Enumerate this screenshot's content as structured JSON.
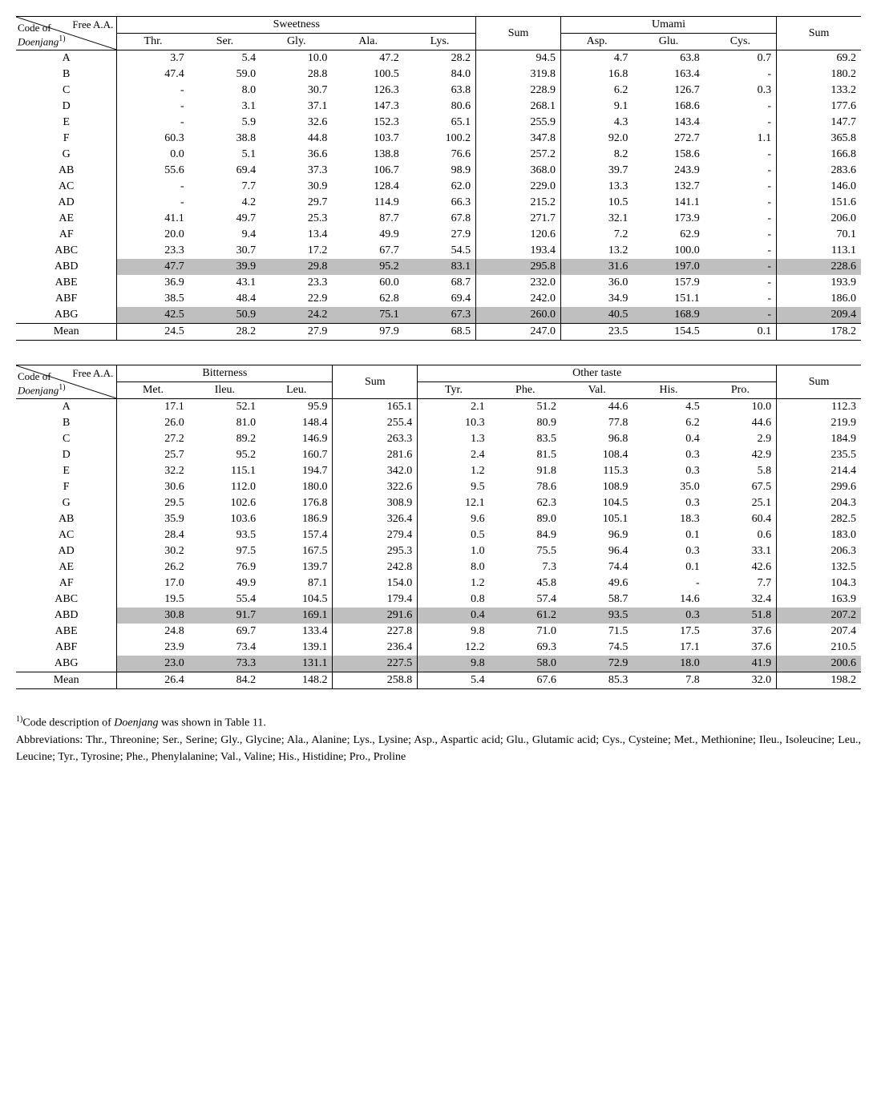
{
  "labels": {
    "freeAA": "Free A.A.",
    "codeOf": "Code of",
    "doenjang": "Doenjang",
    "sup1": "1)",
    "sum": "Sum",
    "mean": "Mean"
  },
  "table1": {
    "group1": "Sweetness",
    "group2": "Umami",
    "cols1": [
      "Thr.",
      "Ser.",
      "Gly.",
      "Ala.",
      "Lys."
    ],
    "cols2": [
      "Asp.",
      "Glu.",
      "Cys."
    ],
    "rows": [
      {
        "code": "A",
        "v": [
          "3.7",
          "5.4",
          "10.0",
          "47.2",
          "28.2",
          "94.5",
          "4.7",
          "63.8",
          "0.7",
          "69.2"
        ]
      },
      {
        "code": "B",
        "v": [
          "47.4",
          "59.0",
          "28.8",
          "100.5",
          "84.0",
          "319.8",
          "16.8",
          "163.4",
          "-",
          "180.2"
        ]
      },
      {
        "code": "C",
        "v": [
          "-",
          "8.0",
          "30.7",
          "126.3",
          "63.8",
          "228.9",
          "6.2",
          "126.7",
          "0.3",
          "133.2"
        ]
      },
      {
        "code": "D",
        "v": [
          "-",
          "3.1",
          "37.1",
          "147.3",
          "80.6",
          "268.1",
          "9.1",
          "168.6",
          "-",
          "177.6"
        ]
      },
      {
        "code": "E",
        "v": [
          "-",
          "5.9",
          "32.6",
          "152.3",
          "65.1",
          "255.9",
          "4.3",
          "143.4",
          "-",
          "147.7"
        ]
      },
      {
        "code": "F",
        "v": [
          "60.3",
          "38.8",
          "44.8",
          "103.7",
          "100.2",
          "347.8",
          "92.0",
          "272.7",
          "1.1",
          "365.8"
        ]
      },
      {
        "code": "G",
        "v": [
          "0.0",
          "5.1",
          "36.6",
          "138.8",
          "76.6",
          "257.2",
          "8.2",
          "158.6",
          "-",
          "166.8"
        ]
      },
      {
        "code": "AB",
        "v": [
          "55.6",
          "69.4",
          "37.3",
          "106.7",
          "98.9",
          "368.0",
          "39.7",
          "243.9",
          "-",
          "283.6"
        ]
      },
      {
        "code": "AC",
        "v": [
          "-",
          "7.7",
          "30.9",
          "128.4",
          "62.0",
          "229.0",
          "13.3",
          "132.7",
          "-",
          "146.0"
        ]
      },
      {
        "code": "AD",
        "v": [
          "-",
          "4.2",
          "29.7",
          "114.9",
          "66.3",
          "215.2",
          "10.5",
          "141.1",
          "-",
          "151.6"
        ]
      },
      {
        "code": "AE",
        "v": [
          "41.1",
          "49.7",
          "25.3",
          "87.7",
          "67.8",
          "271.7",
          "32.1",
          "173.9",
          "-",
          "206.0"
        ]
      },
      {
        "code": "AF",
        "v": [
          "20.0",
          "9.4",
          "13.4",
          "49.9",
          "27.9",
          "120.6",
          "7.2",
          "62.9",
          "-",
          "70.1"
        ]
      },
      {
        "code": "ABC",
        "v": [
          "23.3",
          "30.7",
          "17.2",
          "67.7",
          "54.5",
          "193.4",
          "13.2",
          "100.0",
          "-",
          "113.1"
        ]
      },
      {
        "code": "ABD",
        "v": [
          "47.7",
          "39.9",
          "29.8",
          "95.2",
          "83.1",
          "295.8",
          "31.6",
          "197.0",
          "-",
          "228.6"
        ],
        "hl": true
      },
      {
        "code": "ABE",
        "v": [
          "36.9",
          "43.1",
          "23.3",
          "60.0",
          "68.7",
          "232.0",
          "36.0",
          "157.9",
          "-",
          "193.9"
        ]
      },
      {
        "code": "ABF",
        "v": [
          "38.5",
          "48.4",
          "22.9",
          "62.8",
          "69.4",
          "242.0",
          "34.9",
          "151.1",
          "-",
          "186.0"
        ]
      },
      {
        "code": "ABG",
        "v": [
          "42.5",
          "50.9",
          "24.2",
          "75.1",
          "67.3",
          "260.0",
          "40.5",
          "168.9",
          "-",
          "209.4"
        ],
        "hl": true
      }
    ],
    "mean": [
      "24.5",
      "28.2",
      "27.9",
      "97.9",
      "68.5",
      "247.0",
      "23.5",
      "154.5",
      "0.1",
      "178.2"
    ]
  },
  "table2": {
    "group1": "Bitterness",
    "group2": "Other taste",
    "cols1": [
      "Met.",
      "Ileu.",
      "Leu."
    ],
    "cols2": [
      "Tyr.",
      "Phe.",
      "Val.",
      "His.",
      "Pro."
    ],
    "rows": [
      {
        "code": "A",
        "v": [
          "17.1",
          "52.1",
          "95.9",
          "165.1",
          "2.1",
          "51.2",
          "44.6",
          "4.5",
          "10.0",
          "112.3"
        ]
      },
      {
        "code": "B",
        "v": [
          "26.0",
          "81.0",
          "148.4",
          "255.4",
          "10.3",
          "80.9",
          "77.8",
          "6.2",
          "44.6",
          "219.9"
        ]
      },
      {
        "code": "C",
        "v": [
          "27.2",
          "89.2",
          "146.9",
          "263.3",
          "1.3",
          "83.5",
          "96.8",
          "0.4",
          "2.9",
          "184.9"
        ]
      },
      {
        "code": "D",
        "v": [
          "25.7",
          "95.2",
          "160.7",
          "281.6",
          "2.4",
          "81.5",
          "108.4",
          "0.3",
          "42.9",
          "235.5"
        ]
      },
      {
        "code": "E",
        "v": [
          "32.2",
          "115.1",
          "194.7",
          "342.0",
          "1.2",
          "91.8",
          "115.3",
          "0.3",
          "5.8",
          "214.4"
        ]
      },
      {
        "code": "F",
        "v": [
          "30.6",
          "112.0",
          "180.0",
          "322.6",
          "9.5",
          "78.6",
          "108.9",
          "35.0",
          "67.5",
          "299.6"
        ]
      },
      {
        "code": "G",
        "v": [
          "29.5",
          "102.6",
          "176.8",
          "308.9",
          "12.1",
          "62.3",
          "104.5",
          "0.3",
          "25.1",
          "204.3"
        ]
      },
      {
        "code": "AB",
        "v": [
          "35.9",
          "103.6",
          "186.9",
          "326.4",
          "9.6",
          "89.0",
          "105.1",
          "18.3",
          "60.4",
          "282.5"
        ]
      },
      {
        "code": "AC",
        "v": [
          "28.4",
          "93.5",
          "157.4",
          "279.4",
          "0.5",
          "84.9",
          "96.9",
          "0.1",
          "0.6",
          "183.0"
        ]
      },
      {
        "code": "AD",
        "v": [
          "30.2",
          "97.5",
          "167.5",
          "295.3",
          "1.0",
          "75.5",
          "96.4",
          "0.3",
          "33.1",
          "206.3"
        ]
      },
      {
        "code": "AE",
        "v": [
          "26.2",
          "76.9",
          "139.7",
          "242.8",
          "8.0",
          "7.3",
          "74.4",
          "0.1",
          "42.6",
          "132.5"
        ]
      },
      {
        "code": "AF",
        "v": [
          "17.0",
          "49.9",
          "87.1",
          "154.0",
          "1.2",
          "45.8",
          "49.6",
          "-",
          "7.7",
          "104.3"
        ]
      },
      {
        "code": "ABC",
        "v": [
          "19.5",
          "55.4",
          "104.5",
          "179.4",
          "0.8",
          "57.4",
          "58.7",
          "14.6",
          "32.4",
          "163.9"
        ]
      },
      {
        "code": "ABD",
        "v": [
          "30.8",
          "91.7",
          "169.1",
          "291.6",
          "0.4",
          "61.2",
          "93.5",
          "0.3",
          "51.8",
          "207.2"
        ],
        "hl": true
      },
      {
        "code": "ABE",
        "v": [
          "24.8",
          "69.7",
          "133.4",
          "227.8",
          "9.8",
          "71.0",
          "71.5",
          "17.5",
          "37.6",
          "207.4"
        ]
      },
      {
        "code": "ABF",
        "v": [
          "23.9",
          "73.4",
          "139.1",
          "236.4",
          "12.2",
          "69.3",
          "74.5",
          "17.1",
          "37.6",
          "210.5"
        ]
      },
      {
        "code": "ABG",
        "v": [
          "23.0",
          "73.3",
          "131.1",
          "227.5",
          "9.8",
          "58.0",
          "72.9",
          "18.0",
          "41.9",
          "200.6"
        ],
        "hl": true
      }
    ],
    "mean": [
      "26.4",
      "84.2",
      "148.2",
      "258.8",
      "5.4",
      "67.6",
      "85.3",
      "7.8",
      "32.0",
      "198.2"
    ]
  },
  "footnote": {
    "line1a": "Code description of ",
    "line1b": "Doenjang",
    "line1c": " was shown in Table 11.",
    "line2": "Abbreviations: Thr., Threonine; Ser., Serine; Gly., Glycine; Ala., Alanine; Lys., Lysine; Asp., Aspartic acid; Glu., Glutamic acid; Cys., Cysteine; Met., Methionine; Ileu., Isoleucine; Leu., Leucine; Tyr., Tyrosine; Phe., Phenylalanine; Val., Valine; His., Histidine; Pro., Proline"
  }
}
